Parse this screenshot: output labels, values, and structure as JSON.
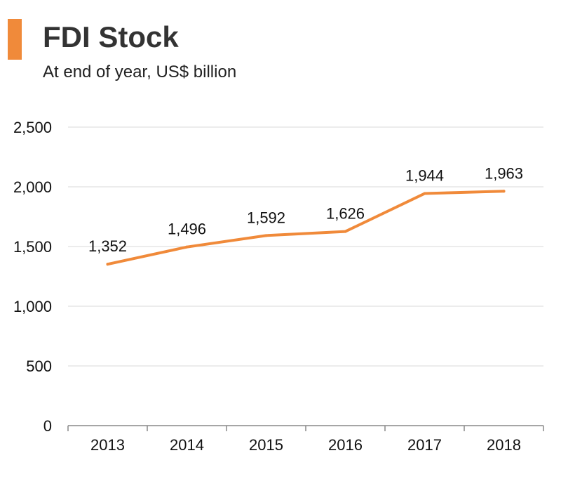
{
  "header": {
    "title": "FDI Stock",
    "subtitle": "At end of year, US$ billion"
  },
  "colors": {
    "accent": "#f08a3a",
    "line": "#f08a3a",
    "grid": "#d9d9d9",
    "axis": "#888888"
  },
  "chart_data": {
    "type": "line",
    "title": "FDI Stock",
    "subtitle": "At end of year, US$ billion",
    "xlabel": "",
    "ylabel": "",
    "categories": [
      "2013",
      "2014",
      "2015",
      "2016",
      "2017",
      "2018"
    ],
    "series": [
      {
        "values": [
          1352,
          1496,
          1592,
          1626,
          1944,
          1963
        ],
        "data_labels": [
          "1,352",
          "1,496",
          "1,592",
          "1,626",
          "1,944",
          "1,963"
        ]
      }
    ],
    "ylim": [
      0,
      2500
    ],
    "yticks": [
      0,
      500,
      1000,
      1500,
      2000,
      2500
    ],
    "ytick_labels": [
      "0",
      "500",
      "1,000",
      "1,500",
      "2,000",
      "2,500"
    ],
    "grid": true,
    "legend": "none"
  }
}
